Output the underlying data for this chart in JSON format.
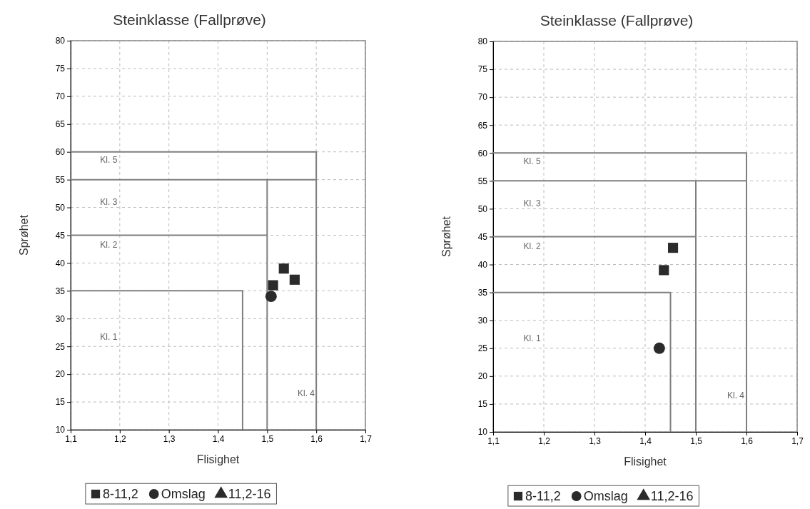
{
  "chart_data": [
    {
      "type": "scatter",
      "title": "Steinklasse (Fallprøve)",
      "xlabel": "Flisighet",
      "ylabel": "Sprøhet",
      "xlim": [
        1.1,
        1.7
      ],
      "xticks": [
        {
          "value": 1.1,
          "label": "1,1"
        },
        {
          "value": 1.2,
          "label": "1,2"
        },
        {
          "value": 1.3,
          "label": "1,3"
        },
        {
          "value": 1.4,
          "label": "1,4"
        },
        {
          "value": 1.5,
          "label": "1,5"
        },
        {
          "value": 1.6,
          "label": "1,6"
        },
        {
          "value": 1.7,
          "label": "1,7"
        }
      ],
      "ylim": [
        10,
        80
      ],
      "yticks": [
        10,
        15,
        20,
        25,
        30,
        35,
        40,
        45,
        50,
        55,
        60,
        65,
        70,
        75,
        80
      ],
      "grid": true,
      "legend": "bottom",
      "series": [
        {
          "name": "8-11,2",
          "marker": "square",
          "color": "#2b2b2b",
          "x": [
            1.512,
            1.534,
            1.556
          ],
          "values": [
            36,
            39,
            37
          ]
        },
        {
          "name": "Omslag",
          "marker": "circle",
          "color": "#2b2b2b",
          "x": [
            1.508
          ],
          "values": [
            34
          ]
        },
        {
          "name": "11,2-16",
          "marker": "triangle",
          "color": "#2b2b2b"
        },
        {
          "type": "line",
          "color": "#7f7f7f",
          "x": [
            1.1,
            1.45,
            1.45
          ],
          "values": [
            35,
            35,
            10
          ]
        },
        {
          "type": "line",
          "color": "#7f7f7f",
          "x": [
            1.1,
            1.5
          ],
          "values": [
            45,
            45
          ]
        },
        {
          "type": "line",
          "color": "#7f7f7f",
          "x": [
            1.1,
            1.6
          ],
          "values": [
            55,
            55
          ]
        },
        {
          "type": "line",
          "color": "#7f7f7f",
          "x": [
            1.1,
            1.6,
            1.6
          ],
          "values": [
            60,
            60,
            10
          ]
        },
        {
          "type": "line",
          "color": "#7f7f7f",
          "x": [
            1.5,
            1.5
          ],
          "values": [
            55,
            10
          ]
        }
      ],
      "annotations": [
        "Kl. 5",
        "Kl. 3",
        "Kl. 2",
        "Kl. 1",
        "Kl. 4"
      ]
    },
    {
      "type": "scatter",
      "title": "Steinklasse (Fallprøve)",
      "xlabel": "Flisighet",
      "ylabel": "Sprøhet",
      "xlim": [
        1.1,
        1.7
      ],
      "xticks": [
        {
          "value": 1.1,
          "label": "1,1"
        },
        {
          "value": 1.2,
          "label": "1,2"
        },
        {
          "value": 1.3,
          "label": "1,3"
        },
        {
          "value": 1.4,
          "label": "1,4"
        },
        {
          "value": 1.5,
          "label": "1,5"
        },
        {
          "value": 1.6,
          "label": "1,6"
        },
        {
          "value": 1.7,
          "label": "1,7"
        }
      ],
      "ylim": [
        10,
        80
      ],
      "yticks": [
        10,
        15,
        20,
        25,
        30,
        35,
        40,
        45,
        50,
        55,
        60,
        65,
        70,
        75,
        80
      ],
      "grid": true,
      "legend": "bottom",
      "series": [
        {
          "name": "8-11,2",
          "marker": "square",
          "color": "#2b2b2b",
          "x": [
            1.437,
            1.455
          ],
          "values": [
            39,
            43
          ]
        },
        {
          "name": "Omslag",
          "marker": "circle",
          "color": "#2b2b2b",
          "x": [
            1.428
          ],
          "values": [
            25
          ]
        },
        {
          "name": "11,2-16",
          "marker": "triangle",
          "color": "#2b2b2b"
        },
        {
          "type": "line",
          "color": "#7f7f7f",
          "x": [
            1.1,
            1.45,
            1.45
          ],
          "values": [
            35,
            35,
            10
          ]
        },
        {
          "type": "line",
          "color": "#7f7f7f",
          "x": [
            1.1,
            1.5
          ],
          "values": [
            45,
            45
          ]
        },
        {
          "type": "line",
          "color": "#7f7f7f",
          "x": [
            1.1,
            1.6
          ],
          "values": [
            55,
            55
          ]
        },
        {
          "type": "line",
          "color": "#7f7f7f",
          "x": [
            1.1,
            1.6,
            1.6
          ],
          "values": [
            60,
            60,
            10
          ]
        },
        {
          "type": "line",
          "color": "#7f7f7f",
          "x": [
            1.5,
            1.5
          ],
          "values": [
            55,
            10
          ]
        }
      ],
      "annotations": [
        "Kl. 5",
        "Kl. 3",
        "Kl. 2",
        "Kl. 1",
        "Kl. 4"
      ]
    }
  ]
}
